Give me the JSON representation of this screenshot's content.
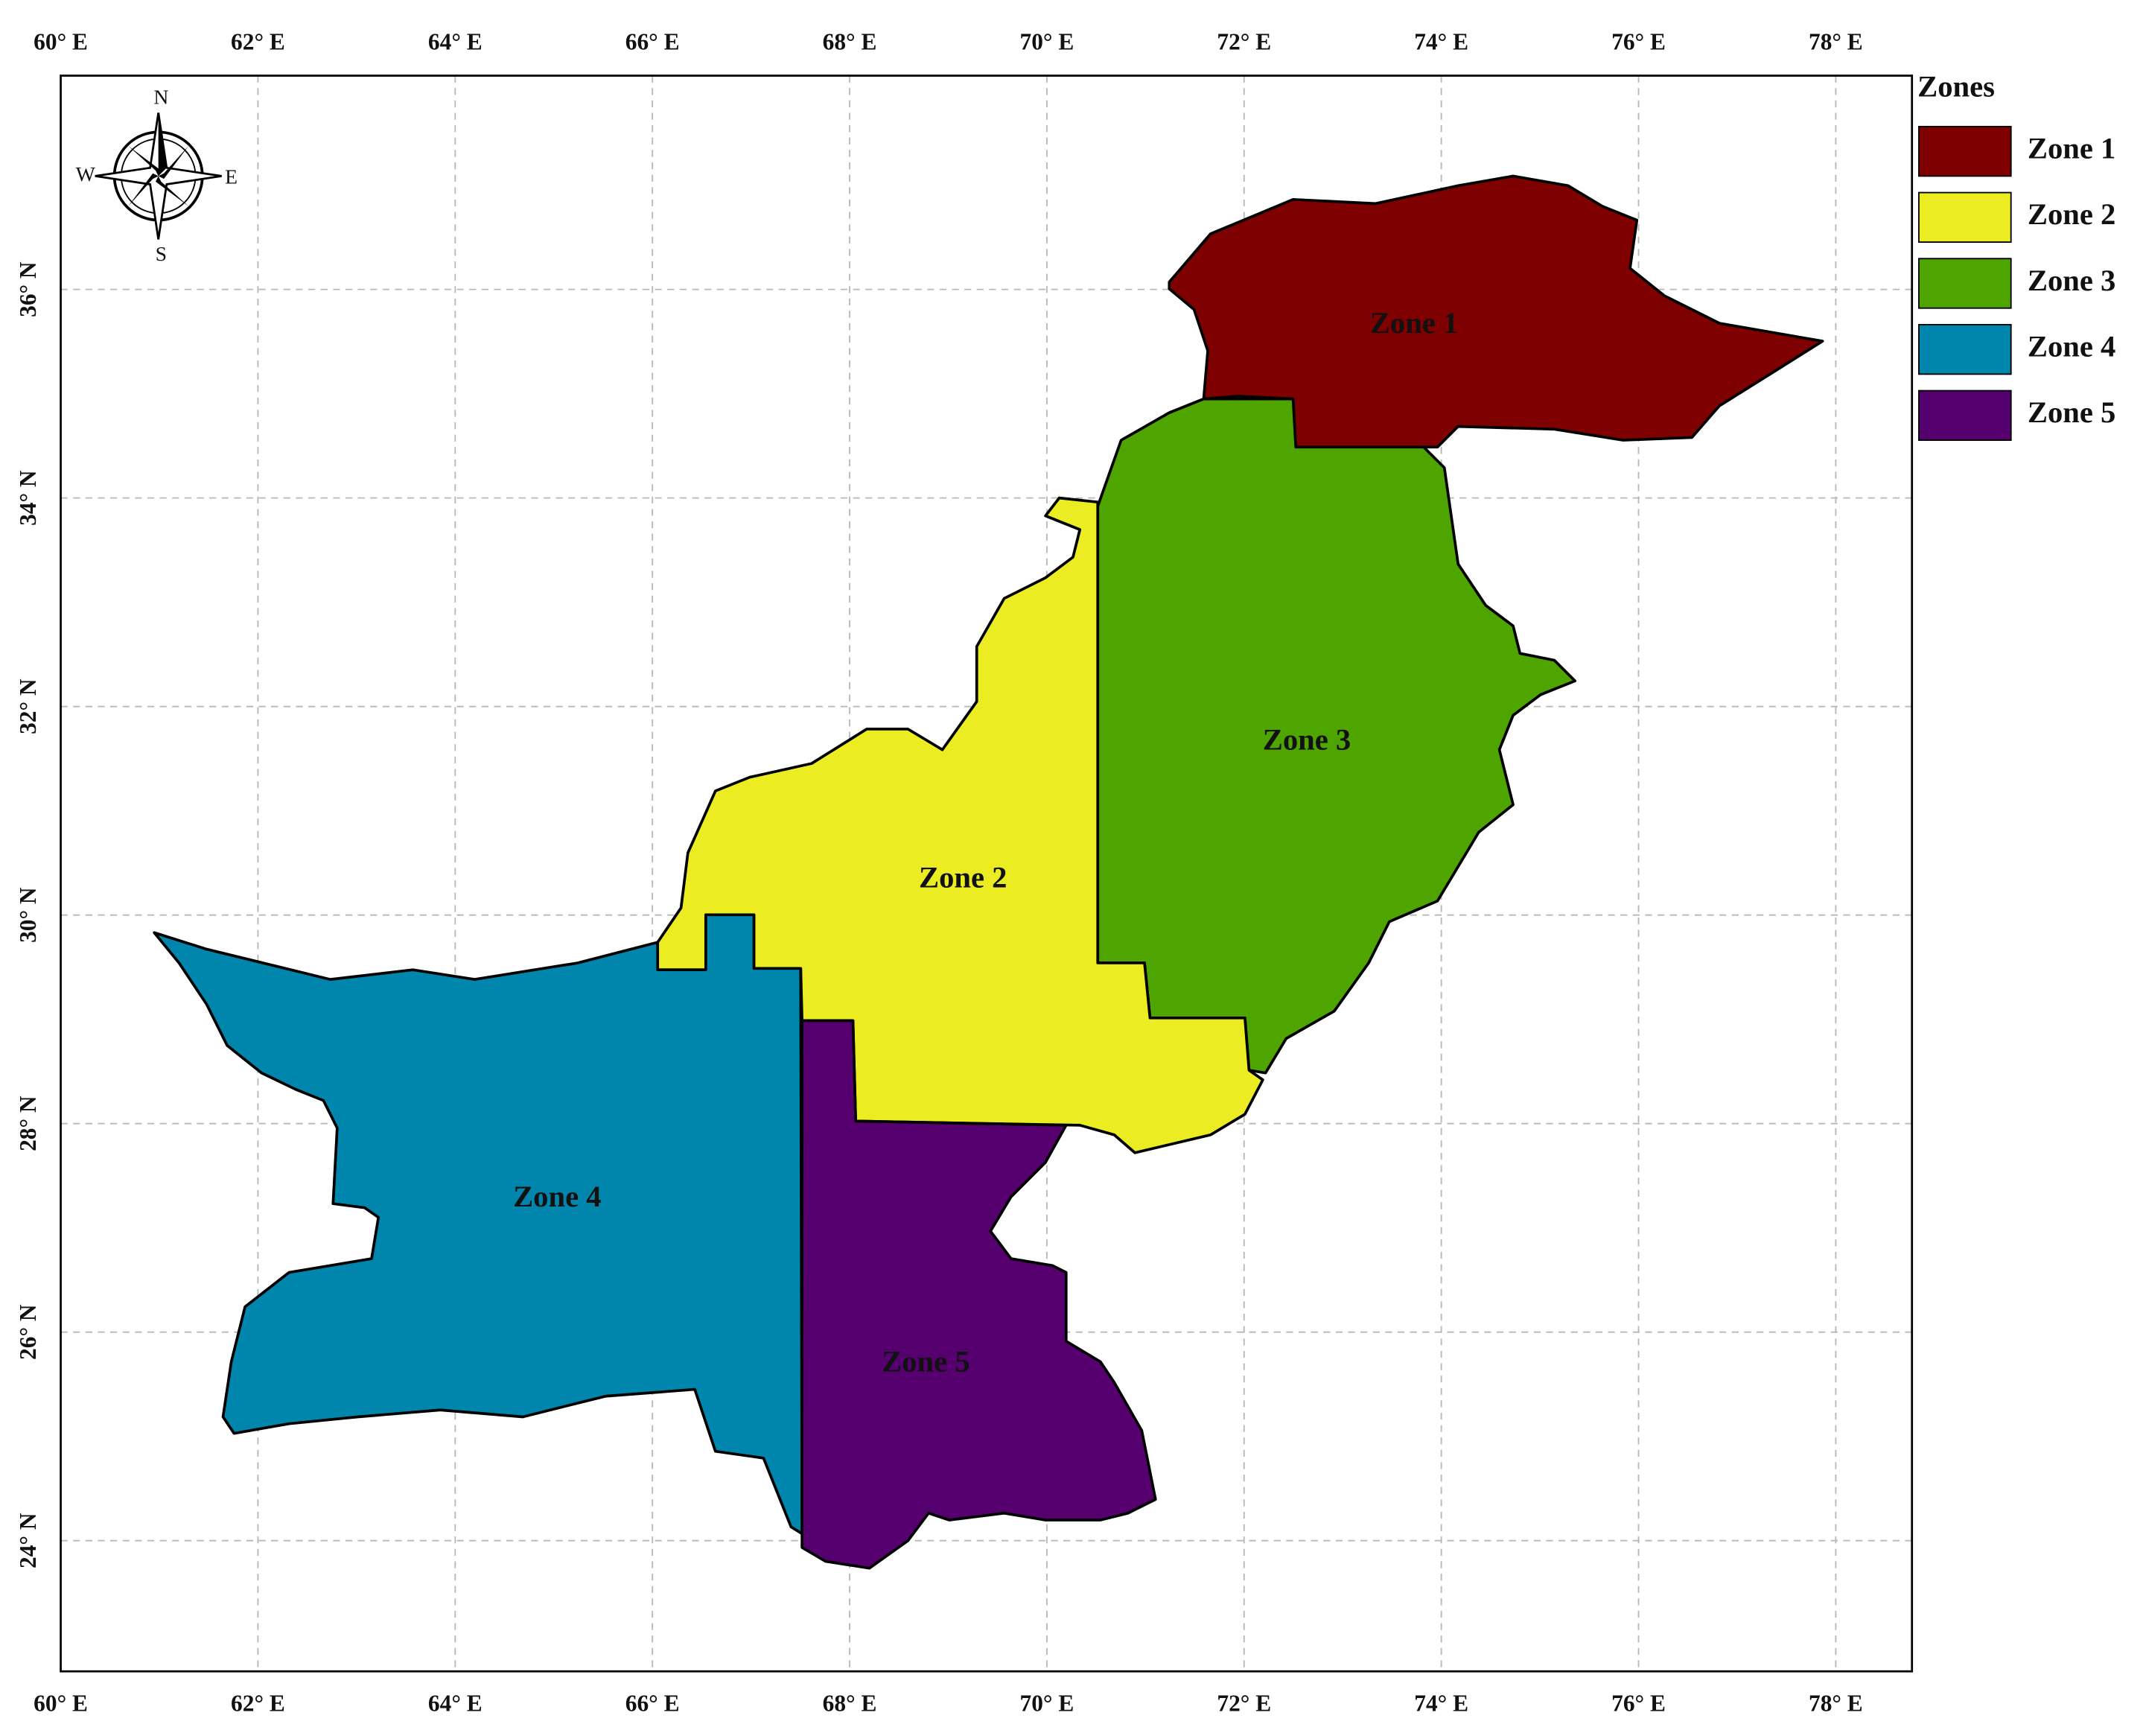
{
  "map": {
    "lon_ticks": [
      {
        "value": 60,
        "label": "60° E"
      },
      {
        "value": 62,
        "label": "62° E"
      },
      {
        "value": 64,
        "label": "64° E"
      },
      {
        "value": 66,
        "label": "66° E"
      },
      {
        "value": 68,
        "label": "68° E"
      },
      {
        "value": 70,
        "label": "70° E"
      },
      {
        "value": 72,
        "label": "72° E"
      },
      {
        "value": 74,
        "label": "74° E"
      },
      {
        "value": 76,
        "label": "76° E"
      },
      {
        "value": 78,
        "label": "78° E"
      }
    ],
    "lat_ticks": [
      {
        "value": 24,
        "label": "24° N"
      },
      {
        "value": 26,
        "label": "26° N"
      },
      {
        "value": 28,
        "label": "28° N"
      },
      {
        "value": 30,
        "label": "30° N"
      },
      {
        "value": 32,
        "label": "32° N"
      },
      {
        "value": 34,
        "label": "34° N"
      },
      {
        "value": 36,
        "label": "36° N"
      }
    ],
    "compass": {
      "n": "N",
      "s": "S",
      "e": "E",
      "w": "W"
    },
    "legend": {
      "title": "Zones",
      "items": [
        {
          "label": "Zone 1",
          "color": "#7f0000"
        },
        {
          "label": "Zone 2",
          "color": "#ecec22"
        },
        {
          "label": "Zone 3",
          "color": "#4ea500"
        },
        {
          "label": "Zone 4",
          "color": "#0086ad"
        },
        {
          "label": "Zone 5",
          "color": "#56006f"
        }
      ]
    }
  }
}
